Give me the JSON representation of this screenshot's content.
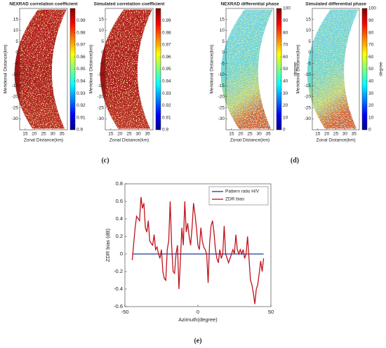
{
  "panel_labels": [
    "(c)",
    "(d)",
    "(e)"
  ],
  "chart_data": [
    {
      "type": "heatmap",
      "title": "NEXRAD correlation coefficient",
      "xlabel": "Zonal Distance(km)",
      "ylabel": "Meridional Distance(km)",
      "xlim": [
        12,
        38
      ],
      "ylim": [
        -35,
        20
      ],
      "xticks": [
        15,
        20,
        25,
        30,
        35
      ],
      "yticks": [
        15,
        10,
        5,
        0,
        -5,
        -10,
        -15,
        -20,
        -25,
        -30
      ],
      "colormap": "jet",
      "clim": [
        0.9,
        1
      ],
      "cticks": [
        0.9,
        0.91,
        0.92,
        0.93,
        0.94,
        0.95,
        0.96,
        0.97,
        0.98,
        0.99
      ]
    },
    {
      "type": "heatmap",
      "title": "Simulated correlation coefficient",
      "xlabel": "Zonal Distance(km)",
      "ylabel": "Meridional Distance(km)",
      "xlim": [
        12,
        38
      ],
      "ylim": [
        -35,
        20
      ],
      "xticks": [
        15,
        20,
        25,
        30,
        35
      ],
      "yticks": [
        15,
        10,
        5,
        0,
        -5,
        -10,
        -15,
        -20,
        -25,
        -30
      ],
      "colormap": "jet",
      "clim": [
        0.9,
        1
      ],
      "cticks": [
        0.9,
        0.91,
        0.92,
        0.93,
        0.94,
        0.95,
        0.96,
        0.97,
        0.98,
        0.99
      ]
    },
    {
      "type": "heatmap",
      "title": "NEXRAD differential phase",
      "xlabel": "Zonal Distance(km)",
      "ylabel": "Meridional Distance(km)",
      "xlim": [
        12,
        38
      ],
      "ylim": [
        -35,
        20
      ],
      "xticks": [
        15,
        20,
        25,
        30,
        35
      ],
      "yticks": [
        15,
        10,
        5,
        0,
        -5,
        -10,
        -15,
        -20,
        -25,
        -30
      ],
      "colormap": "jet",
      "clim": [
        0,
        100
      ],
      "cticks": [
        0,
        10,
        20,
        30,
        40,
        50,
        60,
        70,
        80,
        90,
        100
      ],
      "colorbar_label": "degree"
    },
    {
      "type": "heatmap",
      "title": "Simulated differential phase",
      "xlabel": "Zonal Distance(km)",
      "ylabel": "Meridional Distance(km)",
      "xlim": [
        12,
        38
      ],
      "ylim": [
        -35,
        20
      ],
      "xticks": [
        15,
        20,
        25,
        30,
        35
      ],
      "yticks": [
        15,
        10,
        5,
        0,
        -5,
        -10,
        -15,
        -20,
        -25,
        -30
      ],
      "colormap": "jet",
      "clim": [
        0,
        100
      ],
      "cticks": [
        0,
        10,
        20,
        30,
        40,
        50,
        60,
        70,
        80,
        90,
        100
      ],
      "colorbar_label": "degree"
    },
    {
      "type": "line",
      "xlabel": "Azimuth(degree)",
      "ylabel": "ZDR bias (dB)",
      "xlim": [
        -50,
        50
      ],
      "ylim": [
        -0.6,
        0.8
      ],
      "xticks": [
        -50,
        0,
        50
      ],
      "yticks": [
        -0.6,
        -0.4,
        -0.2,
        0,
        0.2,
        0.4,
        0.6,
        0.8
      ],
      "legend": "upper right",
      "series": [
        {
          "name": "Pattern ratio H/V",
          "color": "#1f3a93",
          "x": [
            -45,
            45
          ],
          "values": [
            0,
            0
          ]
        },
        {
          "name": "ZDR bias",
          "color": "#c0141c",
          "x": [
            -45,
            -43,
            -42,
            -40,
            -39,
            -38,
            -37,
            -36,
            -35,
            -34,
            -33,
            -32,
            -31,
            -30,
            -29,
            -28,
            -27,
            -26,
            -25,
            -24,
            -23,
            -22,
            -21,
            -20,
            -19,
            -18,
            -17,
            -16,
            -15,
            -14,
            -13,
            -12,
            -11,
            -10,
            -9,
            -8,
            -7,
            -6,
            -5,
            -4,
            -3,
            -2,
            -1,
            0,
            1,
            2,
            3,
            4,
            5,
            6,
            7,
            8,
            9,
            10,
            11,
            12,
            13,
            14,
            15,
            16,
            17,
            18,
            19,
            20,
            21,
            22,
            23,
            24,
            25,
            26,
            27,
            28,
            29,
            30,
            31,
            32,
            33,
            34,
            35,
            36,
            37,
            38,
            39,
            40,
            41,
            42,
            43,
            44,
            45
          ],
          "values": [
            -0.07,
            0.3,
            0.43,
            0.38,
            0.65,
            0.52,
            0.58,
            0.3,
            0.25,
            0.38,
            0.15,
            0.12,
            0.1,
            0.22,
            0.05,
            0.08,
            0.0,
            -0.05,
            0.05,
            -0.2,
            -0.28,
            -0.3,
            0.05,
            0.15,
            0.6,
            0.1,
            -0.2,
            -0.22,
            0.0,
            0.1,
            -0.4,
            -0.08,
            0.3,
            0.1,
            0.6,
            0.25,
            0.35,
            0.2,
            0.1,
            0.3,
            0.58,
            0.45,
            0.3,
            0.1,
            0.05,
            0.3,
            0.15,
            0.08,
            0.05,
            0.0,
            -0.33,
            0.12,
            0.32,
            0.38,
            0.25,
            0.05,
            -0.05,
            -0.1,
            0.05,
            -0.05,
            0.0,
            0.32,
            0.0,
            -0.05,
            -0.1,
            -0.05,
            0.0,
            0.05,
            0.0,
            0.22,
            0.05,
            0.0,
            0.05,
            0.0,
            0.05,
            -0.05,
            0.0,
            0.2,
            -0.05,
            -0.3,
            -0.35,
            -0.45,
            -0.57,
            -0.4,
            -0.35,
            -0.22,
            -0.08,
            -0.2,
            -0.05
          ]
        }
      ]
    }
  ]
}
